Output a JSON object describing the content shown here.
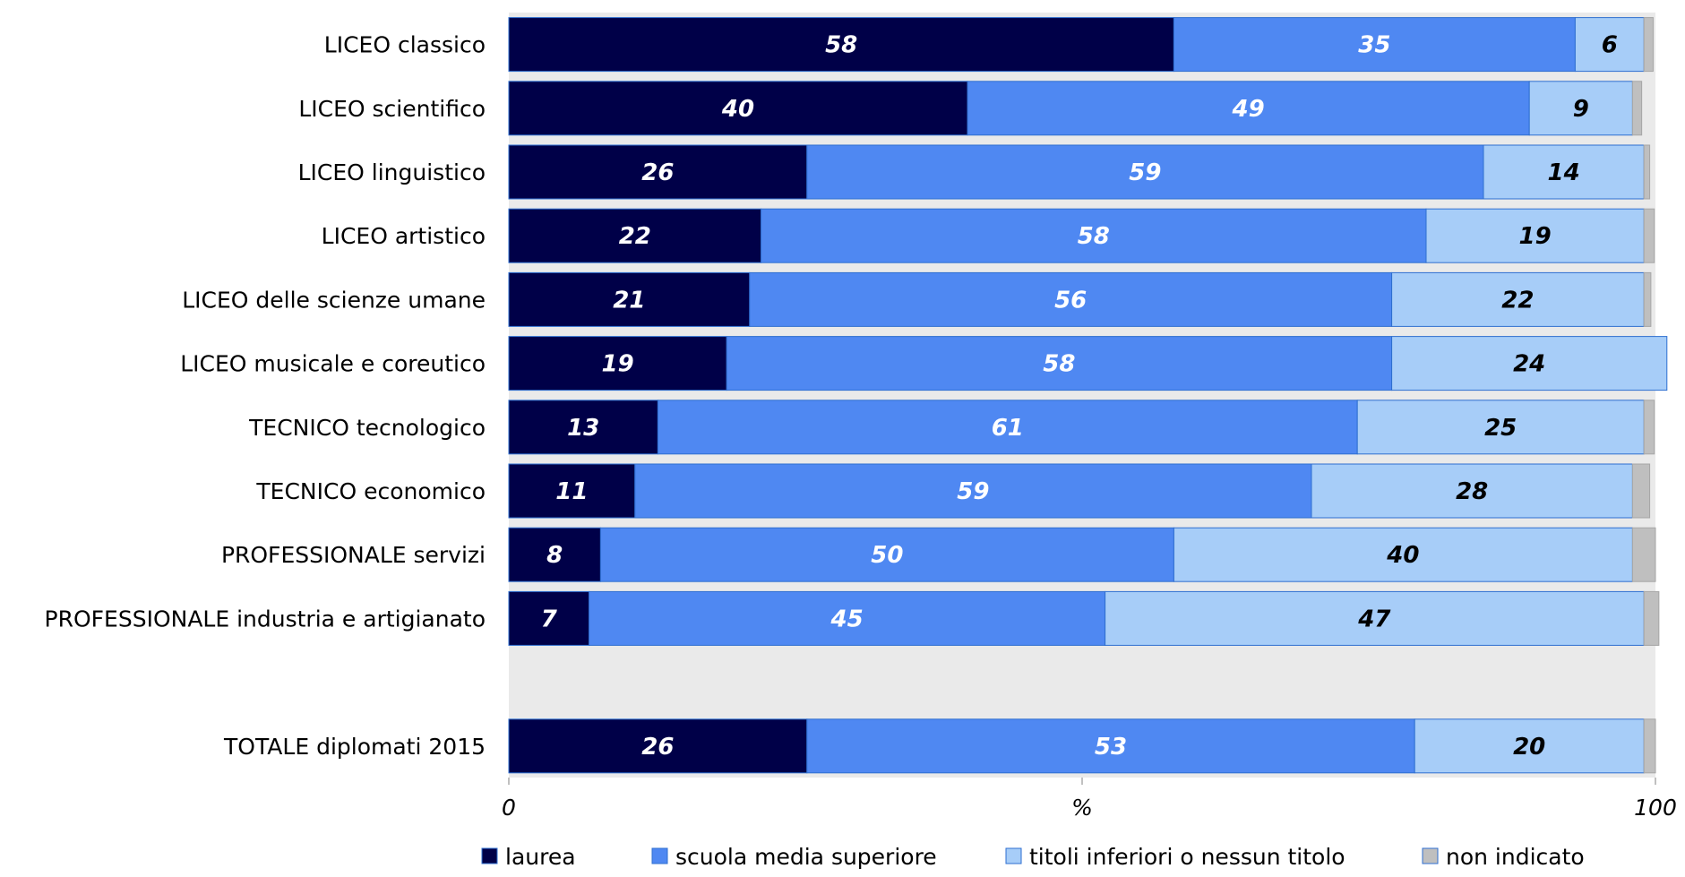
{
  "chart_data": {
    "type": "bar",
    "orientation": "horizontal-stacked-100",
    "categories": [
      "LICEO classico",
      "LICEO scientifico",
      "LICEO linguistico",
      "LICEO artistico",
      "LICEO delle scienze umane",
      "LICEO musicale e coreutico",
      "TECNICO tecnologico",
      "TECNICO economico",
      "PROFESSIONALE servizi",
      "PROFESSIONALE industria e artigianato",
      "",
      "TOTALE diplomati 2015"
    ],
    "series": [
      {
        "name": "laurea",
        "color": "#000048",
        "label_color": "#ffffff",
        "values": [
          58,
          40,
          26,
          22,
          21,
          19,
          13,
          11,
          8,
          7,
          null,
          26
        ]
      },
      {
        "name": "scuola media superiore",
        "color": "#4f88f2",
        "label_color": "#ffffff",
        "values": [
          35,
          49,
          59,
          58,
          56,
          58,
          61,
          59,
          50,
          45,
          null,
          53
        ]
      },
      {
        "name": "titoli inferiori o nessun titolo",
        "color": "#a7cdf8",
        "label_color": "#000000",
        "values": [
          6,
          9,
          14,
          19,
          22,
          24,
          25,
          28,
          40,
          47,
          null,
          20
        ]
      },
      {
        "name": "non indicato",
        "color": "#bfbfbf",
        "label_color": "#000000",
        "values": [
          0.8,
          0.8,
          0.5,
          0.9,
          0.6,
          0.0,
          0.9,
          1.5,
          2.0,
          1.3,
          null,
          1.0
        ]
      }
    ],
    "label_series": [
      0,
      1,
      2
    ],
    "xlim": [
      0,
      100
    ],
    "xticks": [
      "0",
      "%",
      "100"
    ],
    "xlabel": "",
    "ylabel": "",
    "title": "",
    "legend_position": "bottom",
    "plot_background": "#eaeaea"
  }
}
